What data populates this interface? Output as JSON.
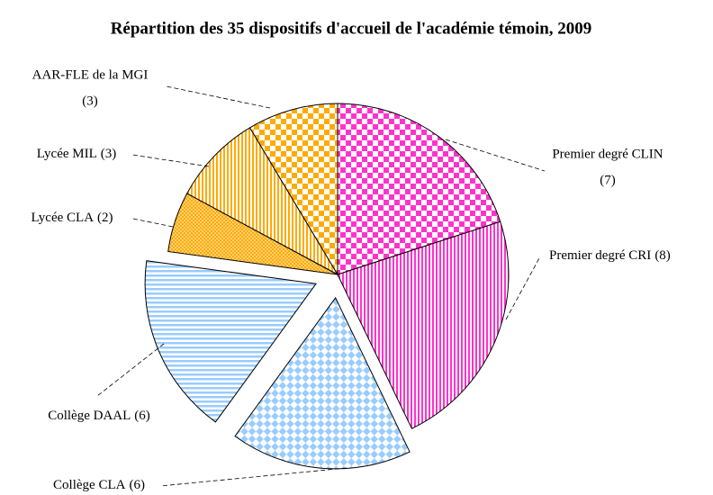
{
  "chart_data": {
    "type": "pie",
    "title": "Répartition des 35 dispositifs d'accueil de l'académie témoin, 2009",
    "categories": [
      "Premier degré CLIN",
      "Premier degré CRI",
      "Collège CLA",
      "Collège DAAL",
      "Lycée CLA",
      "Lycée MIL",
      "AAR-FLE de la MGI"
    ],
    "values": [
      7,
      8,
      6,
      6,
      2,
      3,
      3
    ],
    "value_labels": [
      "(7)",
      "(8)",
      "(6)",
      "(6)",
      "(2)",
      "(3)",
      "(3)"
    ],
    "colors": [
      "#ff33cc",
      "#ff33cc",
      "#99ccff",
      "#99ccff",
      "#ffaa00",
      "#ffaa00",
      "#ffaa00"
    ],
    "patterns": [
      "checker",
      "vstripe",
      "diamond",
      "hstripe",
      "dots",
      "vstripe",
      "checker"
    ],
    "explode": [
      false,
      false,
      true,
      true,
      false,
      false,
      false
    ]
  }
}
